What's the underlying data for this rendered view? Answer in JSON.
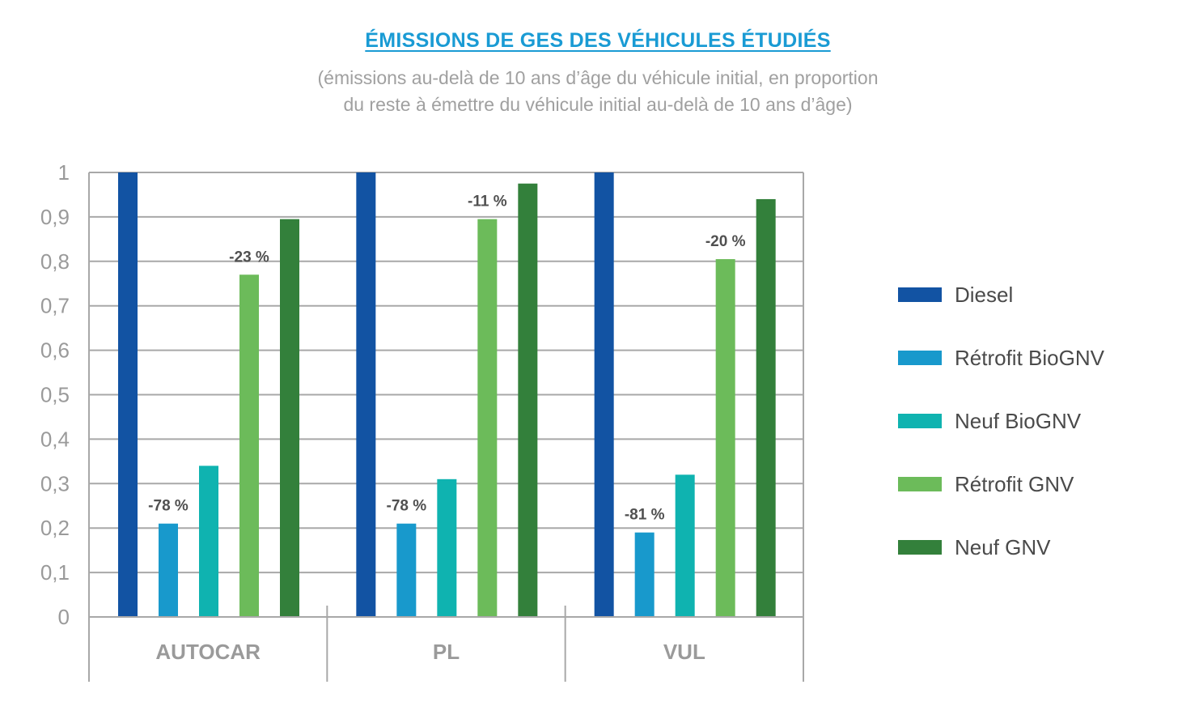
{
  "title": "ÉMISSIONS DE GES DES VÉHICULES ÉTUDIÉS",
  "subtitle": [
    "(émissions au-delà de 10 ans d’âge du véhicule initial, en proportion",
    "du reste à émettre du véhicule initial au-delà de 10 ans d’âge)"
  ],
  "colors": {
    "title": "#1a9bd4",
    "grid": "#a8a8a8",
    "axis_text": "#9a9a9a",
    "category_text": "#9a9a9a",
    "annotation_text": "#505050"
  },
  "chart_data": {
    "type": "bar",
    "title": "ÉMISSIONS DE GES DES VÉHICULES ÉTUDIÉS",
    "categories": [
      "AUTOCAR",
      "PL",
      "VUL"
    ],
    "ylim": [
      0,
      1
    ],
    "yticks": [
      {
        "value": 0,
        "label": "0"
      },
      {
        "value": 0.1,
        "label": "0,1"
      },
      {
        "value": 0.2,
        "label": "0,2"
      },
      {
        "value": 0.3,
        "label": "0,3"
      },
      {
        "value": 0.4,
        "label": "0,4"
      },
      {
        "value": 0.5,
        "label": "0,5"
      },
      {
        "value": 0.6,
        "label": "0,6"
      },
      {
        "value": 0.7,
        "label": "0,7"
      },
      {
        "value": 0.8,
        "label": "0,8"
      },
      {
        "value": 0.9,
        "label": "0,9"
      },
      {
        "value": 1,
        "label": "1"
      }
    ],
    "grid": true,
    "legend_position": "right",
    "series": [
      {
        "name": "Diesel",
        "color": "#1253a3",
        "values": [
          1.0,
          1.0,
          1.0
        ]
      },
      {
        "name": "Rétrofit BioGNV",
        "color": "#1899cc",
        "values": [
          0.21,
          0.21,
          0.19
        ]
      },
      {
        "name": "Neuf BioGNV",
        "color": "#0fb3b0",
        "values": [
          0.34,
          0.31,
          0.32
        ]
      },
      {
        "name": "Rétrofit GNV",
        "color": "#6cbb5a",
        "values": [
          0.77,
          0.895,
          0.805
        ]
      },
      {
        "name": "Neuf GNV",
        "color": "#33803b",
        "values": [
          0.895,
          0.975,
          0.94
        ]
      }
    ],
    "annotations": [
      {
        "category": "AUTOCAR",
        "series": "Rétrofit BioGNV",
        "text": "-78 %"
      },
      {
        "category": "AUTOCAR",
        "series": "Rétrofit GNV",
        "text": "-23 %"
      },
      {
        "category": "PL",
        "series": "Rétrofit BioGNV",
        "text": "-78 %"
      },
      {
        "category": "PL",
        "series": "Rétrofit GNV",
        "text": "-11 %"
      },
      {
        "category": "VUL",
        "series": "Rétrofit BioGNV",
        "text": "-81 %"
      },
      {
        "category": "VUL",
        "series": "Rétrofit GNV",
        "text": "-20 %"
      }
    ]
  }
}
